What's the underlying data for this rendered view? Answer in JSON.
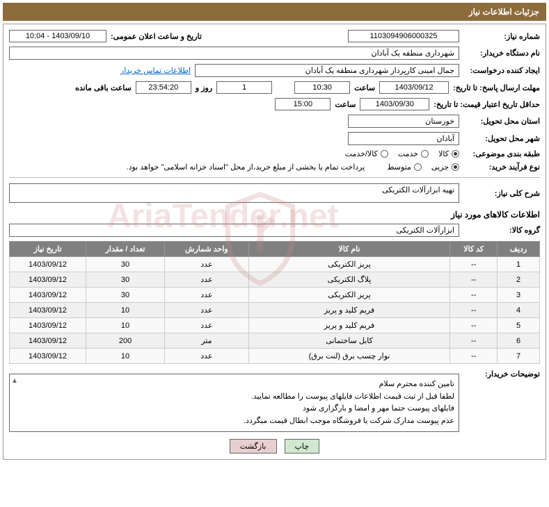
{
  "header": {
    "title": "جزئیات اطلاعات نیاز"
  },
  "fields": {
    "need_no_label": "شماره نیاز:",
    "need_no": "1103094906000325",
    "announce_dt_label": "تاریخ و ساعت اعلان عمومی:",
    "announce_dt": "1403/09/10 - 10:04",
    "buyer_org_label": "نام دستگاه خریدار:",
    "buyer_org": "شهرداری منطقه یک آبادان",
    "requester_label": "ایجاد کننده درخواست:",
    "requester": "جمال امینی کارپرداز شهرداری منطقه یک آبادان",
    "buyer_contact_link": "اطلاعات تماس خریدار",
    "deadline_label": "مهلت ارسال پاسخ: تا تاریخ:",
    "deadline_date": "1403/09/12",
    "time_label": "ساعت",
    "deadline_time": "10:30",
    "days_remaining": "1",
    "days_and": "روز و",
    "time_remaining": "23:54:20",
    "remaining_label": "ساعت باقی مانده",
    "validity_label": "حداقل تاریخ اعتبار قیمت: تا تاریخ:",
    "validity_date": "1403/09/30",
    "validity_time": "15:00",
    "province_label": "استان محل تحویل:",
    "province": "خوزستان",
    "city_label": "شهر محل تحویل:",
    "city": "آبادان",
    "category_label": "طبقه بندی موضوعی:",
    "cat_goods": "کالا",
    "cat_service": "خدمت",
    "cat_goods_service": "کالا/خدمت",
    "process_label": "نوع فرآیند خرید:",
    "proc_small": "جزیی",
    "proc_medium": "متوسط",
    "treasury_note": "پرداخت تمام یا بخشی از مبلغ خرید،از محل \"اسناد خزانه اسلامی\" خواهد بود.",
    "summary_label": "شرح کلی نیاز:",
    "summary": "تهیه ابزارآلات الکتریکی",
    "goods_section": "اطلاعات کالاهای مورد نیاز",
    "group_label": "گروه کالا:",
    "group": "ابزارآلات الکتریکی",
    "buyer_notes_label": "توضیحات خریدار:"
  },
  "table": {
    "headers": {
      "row": "ردیف",
      "code": "کد کالا",
      "name": "نام کالا",
      "unit": "واحد شمارش",
      "qty": "تعداد / مقدار",
      "date": "تاریخ نیاز"
    },
    "rows": [
      {
        "n": "1",
        "code": "--",
        "name": "پریز الکتریکی",
        "unit": "عدد",
        "qty": "30",
        "date": "1403/09/12"
      },
      {
        "n": "2",
        "code": "--",
        "name": "پلاگ الکتریکی",
        "unit": "عدد",
        "qty": "30",
        "date": "1403/09/12"
      },
      {
        "n": "3",
        "code": "--",
        "name": "پریز الکتریکی",
        "unit": "عدد",
        "qty": "30",
        "date": "1403/09/12"
      },
      {
        "n": "4",
        "code": "--",
        "name": "فریم کلید و پریز",
        "unit": "عدد",
        "qty": "10",
        "date": "1403/09/12"
      },
      {
        "n": "5",
        "code": "--",
        "name": "فریم کلید و پریز",
        "unit": "عدد",
        "qty": "10",
        "date": "1403/09/12"
      },
      {
        "n": "6",
        "code": "--",
        "name": "کابل ساختمانی",
        "unit": "متر",
        "qty": "200",
        "date": "1403/09/12"
      },
      {
        "n": "7",
        "code": "--",
        "name": "نوار چسب برق (لنت برق)",
        "unit": "عدد",
        "qty": "10",
        "date": "1403/09/12"
      }
    ]
  },
  "notes": {
    "l1": "تامین کننده محترم سلام",
    "l2": "لطفا قبل از ثبت قیمت اطلاعات فایلهای پیوست را مطالعه نمایید.",
    "l3": "فایلهای پیوست حتما مهر و امضا و بارگزاری شود",
    "l4": "عدم پیوست مدارک شرکت یا فروشگاه موجب ابطال قیمت میگردد."
  },
  "buttons": {
    "print": "چاپ",
    "back": "بازگشت"
  },
  "watermark": "AriaTender.net",
  "colors": {
    "header_bg": "#8d6c3c",
    "th_bg": "#808080"
  }
}
